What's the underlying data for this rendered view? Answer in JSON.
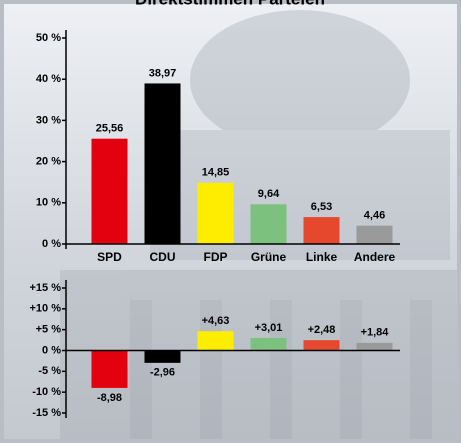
{
  "chart_data": [
    {
      "type": "bar",
      "title": "Direktstimmen Parteien",
      "categories": [
        "SPD",
        "CDU",
        "FDP",
        "Grüne",
        "Linke",
        "Andere"
      ],
      "values": [
        25.56,
        38.97,
        14.85,
        9.64,
        6.53,
        4.46
      ],
      "value_labels": [
        "25,56",
        "38,97",
        "14,85",
        "9,64",
        "6,53",
        "4,46"
      ],
      "colors": [
        "#e3000f",
        "#000000",
        "#ffed00",
        "#7cc17e",
        "#e5482d",
        "#9a9a9a"
      ],
      "ylim": [
        0,
        50
      ],
      "yticks": [
        {
          "value": 0,
          "label": "0 %"
        },
        {
          "value": 10,
          "label": "10 %"
        },
        {
          "value": 20,
          "label": "20 %"
        },
        {
          "value": 30,
          "label": "30 %"
        },
        {
          "value": 40,
          "label": "40 %"
        },
        {
          "value": 50,
          "label": "50 %"
        }
      ]
    },
    {
      "type": "bar",
      "values": [
        -8.98,
        -2.96,
        4.63,
        3.01,
        2.48,
        1.84
      ],
      "value_labels": [
        "-8,98",
        "-2,96",
        "+4,63",
        "+3,01",
        "+2,48",
        "+1,84"
      ],
      "colors": [
        "#e3000f",
        "#000000",
        "#ffed00",
        "#7cc17e",
        "#e5482d",
        "#9a9a9a"
      ],
      "ylim": [
        -15,
        15
      ],
      "yticks": [
        {
          "value": -15,
          "label": "-15 %"
        },
        {
          "value": -10,
          "label": "-10 %"
        },
        {
          "value": -5,
          "label": "-5 %"
        },
        {
          "value": 0,
          "label": "0 %"
        },
        {
          "value": 5,
          "label": "+5 %"
        },
        {
          "value": 10,
          "label": "+10 %"
        },
        {
          "value": 15,
          "label": "+15 %"
        }
      ]
    }
  ]
}
